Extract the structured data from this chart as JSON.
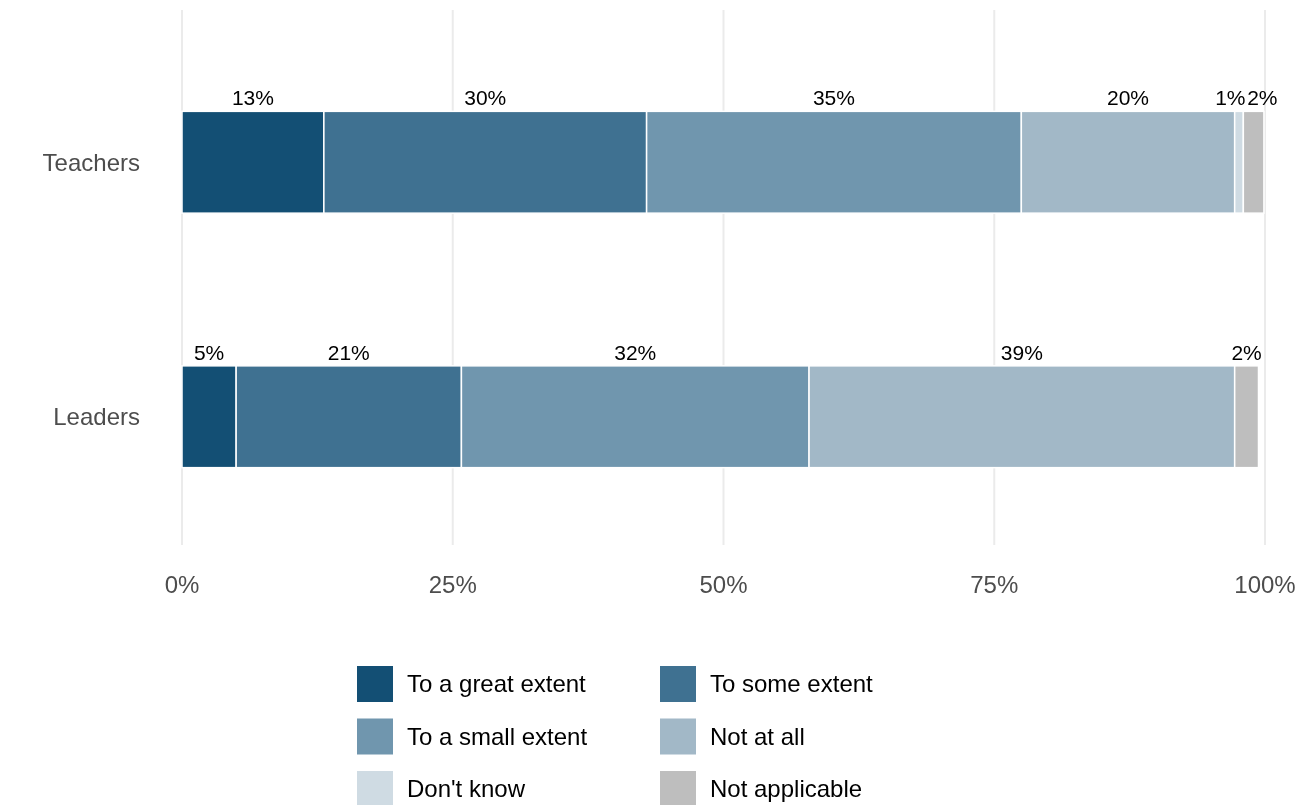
{
  "chart_data": {
    "type": "bar",
    "orientation": "horizontal",
    "stacked": true,
    "categories": [
      "Teachers",
      "Leaders"
    ],
    "series": [
      {
        "name": "To a great extent",
        "color": "#134f74",
        "values": [
          13.1,
          5.0
        ],
        "value_labels": [
          "13%",
          "5%"
        ]
      },
      {
        "name": "To some extent",
        "color": "#3f7191",
        "values": [
          29.8,
          20.8
        ],
        "value_labels": [
          "30%",
          "21%"
        ]
      },
      {
        "name": "To a small extent",
        "color": "#7096ae",
        "values": [
          34.6,
          32.1
        ],
        "value_labels": [
          "35%",
          "32%"
        ]
      },
      {
        "name": "Not at all",
        "color": "#a2b8c7",
        "values": [
          19.7,
          39.3
        ],
        "value_labels": [
          "20%",
          "39%"
        ]
      },
      {
        "name": "Don't know",
        "color": "#cfdbe3",
        "values": [
          0.8,
          null
        ],
        "value_labels": [
          "1%",
          null
        ]
      },
      {
        "name": "Not applicable",
        "color": "#bebebe",
        "values": [
          1.9,
          2.2
        ],
        "value_labels": [
          "2%",
          "2%"
        ]
      }
    ],
    "xlim": [
      0,
      100
    ],
    "xticks": [
      {
        "value": 0,
        "label": "0%"
      },
      {
        "value": 25,
        "label": "25%"
      },
      {
        "value": 50,
        "label": "50%"
      },
      {
        "value": 75,
        "label": "75%"
      },
      {
        "value": 100,
        "label": "100%"
      }
    ],
    "grid": "x",
    "legend": "bottom"
  }
}
